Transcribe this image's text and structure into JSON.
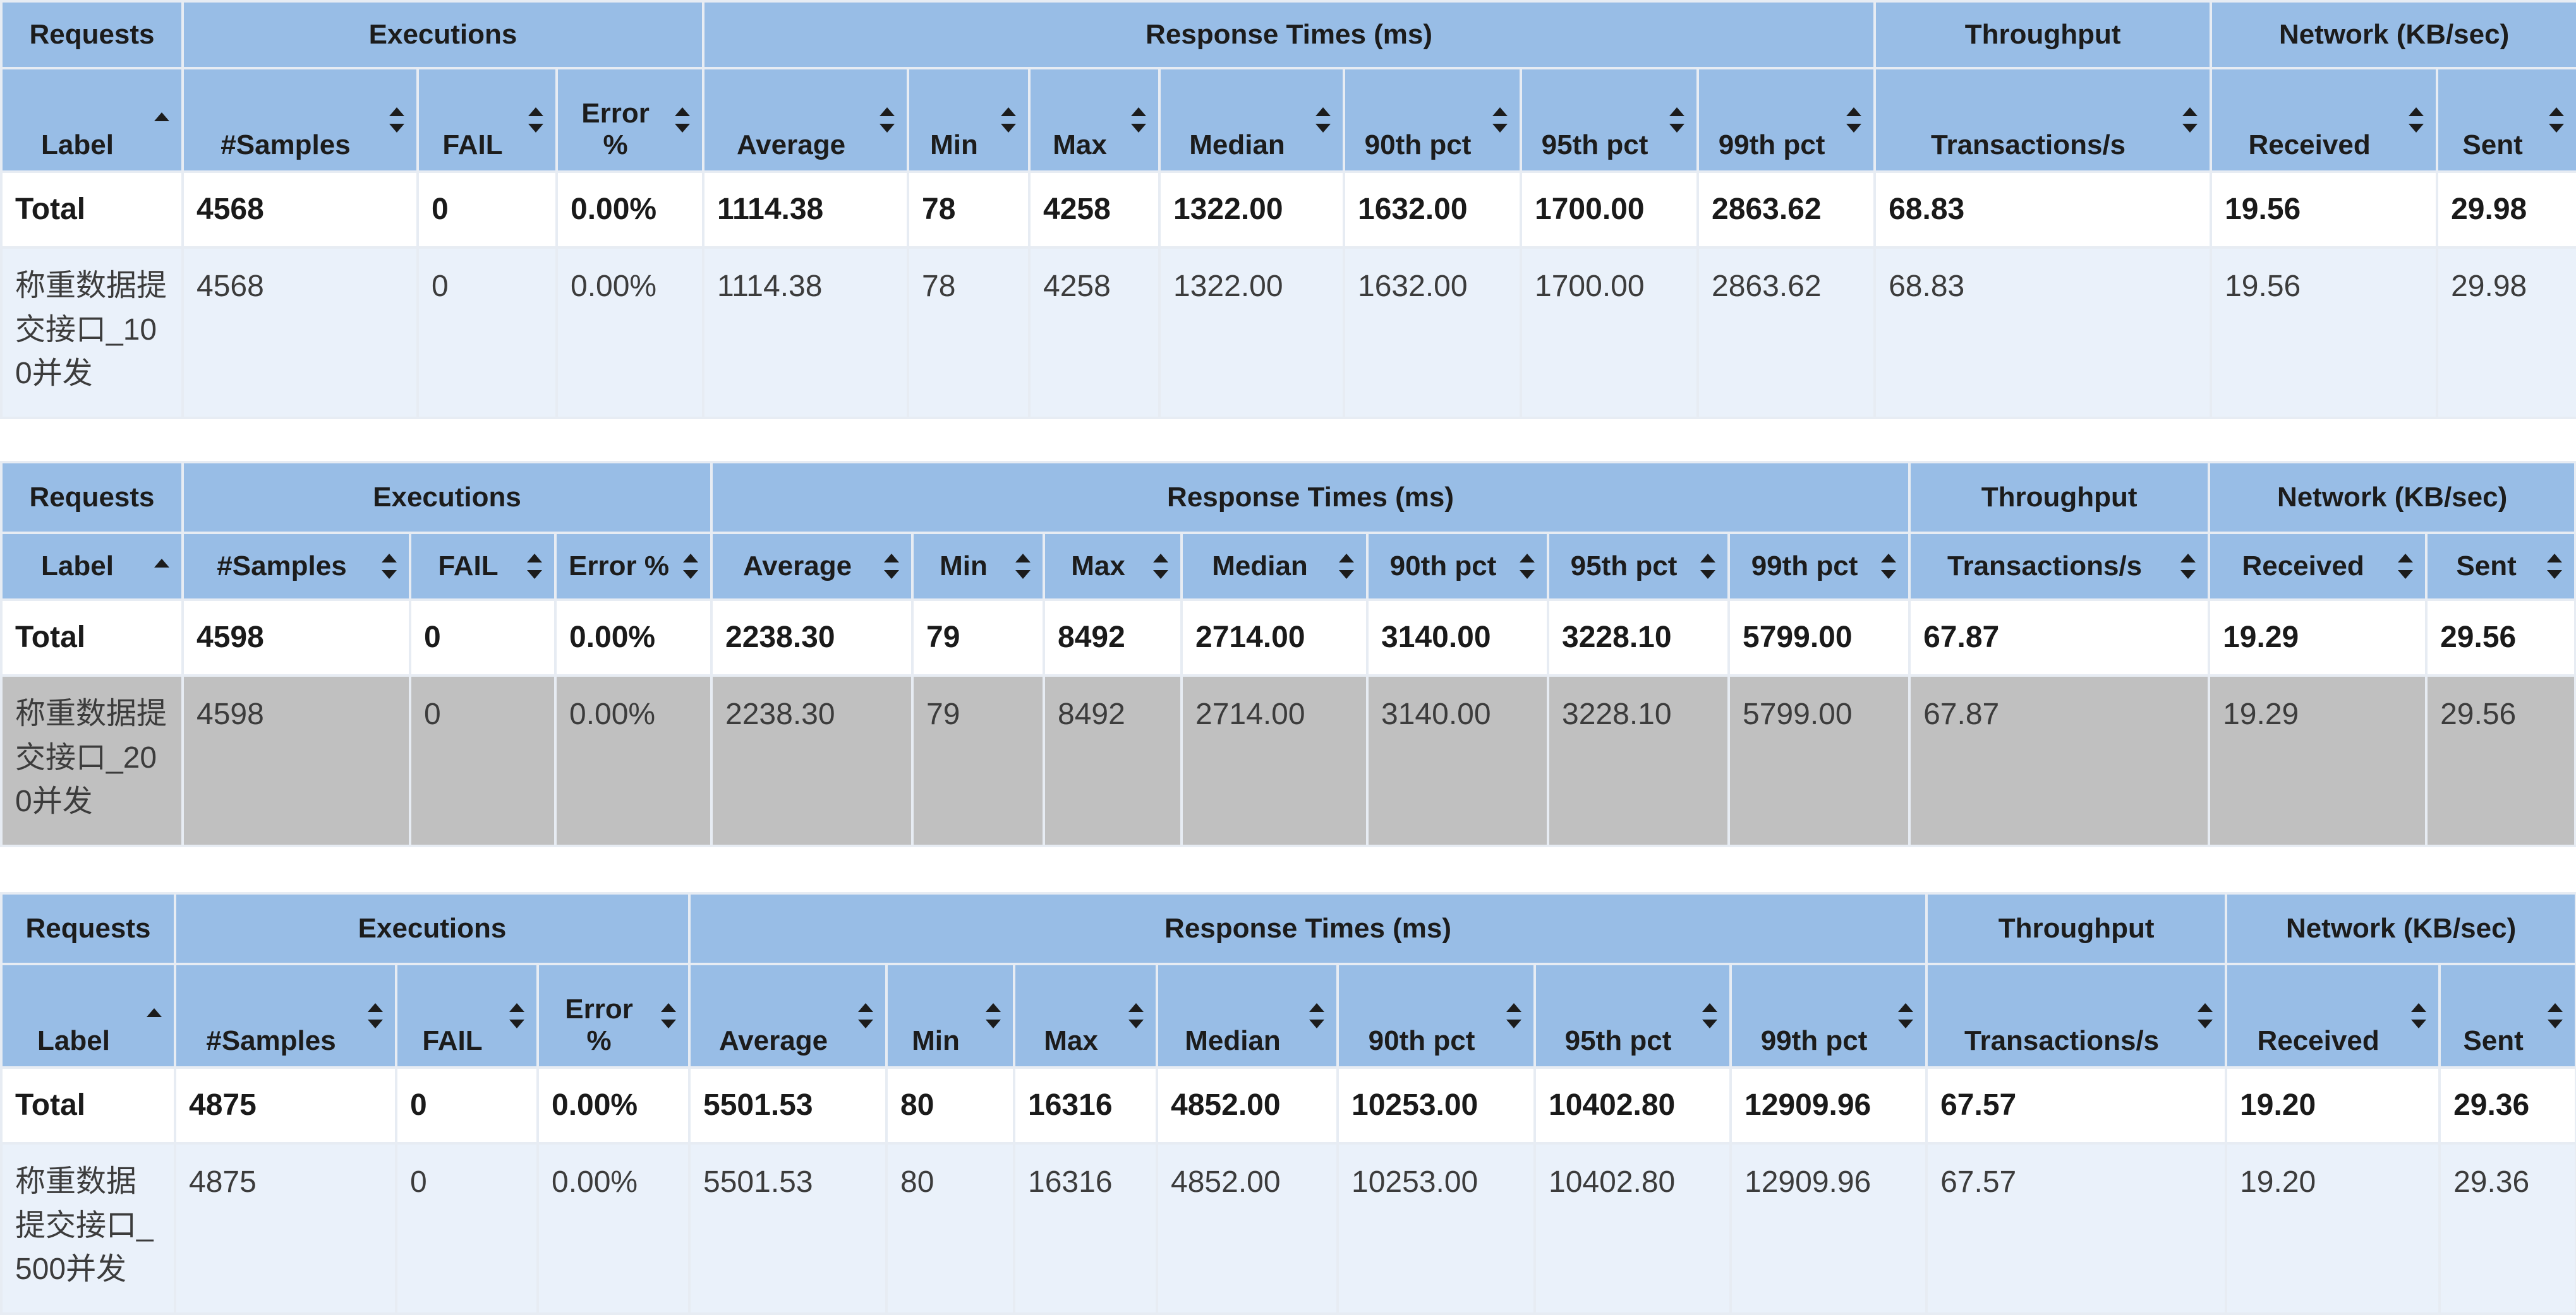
{
  "groups": [
    "Requests",
    "Executions",
    "Response Times (ms)",
    "Throughput",
    "Network (KB/sec)"
  ],
  "columns": [
    "Label",
    "#Samples",
    "FAIL",
    "Error %",
    "Average",
    "Min",
    "Max",
    "Median",
    "90th pct",
    "95th pct",
    "99th pct",
    "Transactions/s",
    "Received",
    "Sent"
  ],
  "tables": [
    {
      "total": [
        "Total",
        "4568",
        "0",
        "0.00%",
        "1114.38",
        "78",
        "4258",
        "1322.00",
        "1632.00",
        "1700.00",
        "2863.62",
        "68.83",
        "19.56",
        "29.98"
      ],
      "row": [
        "称重数据提交接口_100并发",
        "4568",
        "0",
        "0.00%",
        "1114.38",
        "78",
        "4258",
        "1322.00",
        "1632.00",
        "1700.00",
        "2863.62",
        "68.83",
        "19.56",
        "29.98"
      ]
    },
    {
      "total": [
        "Total",
        "4598",
        "0",
        "0.00%",
        "2238.30",
        "79",
        "8492",
        "2714.00",
        "3140.00",
        "3228.10",
        "5799.00",
        "67.87",
        "19.29",
        "29.56"
      ],
      "row": [
        "称重数据提交接口_200并发",
        "4598",
        "0",
        "0.00%",
        "2238.30",
        "79",
        "8492",
        "2714.00",
        "3140.00",
        "3228.10",
        "5799.00",
        "67.87",
        "19.29",
        "29.56"
      ]
    },
    {
      "total": [
        "Total",
        "4875",
        "0",
        "0.00%",
        "5501.53",
        "80",
        "16316",
        "4852.00",
        "10253.00",
        "10402.80",
        "12909.96",
        "67.57",
        "19.20",
        "29.36"
      ],
      "row": [
        "称重数据提交接口_500并发",
        "4875",
        "0",
        "0.00%",
        "5501.53",
        "80",
        "16316",
        "4852.00",
        "10253.00",
        "10402.80",
        "12909.96",
        "67.57",
        "19.20",
        "29.36"
      ]
    }
  ]
}
